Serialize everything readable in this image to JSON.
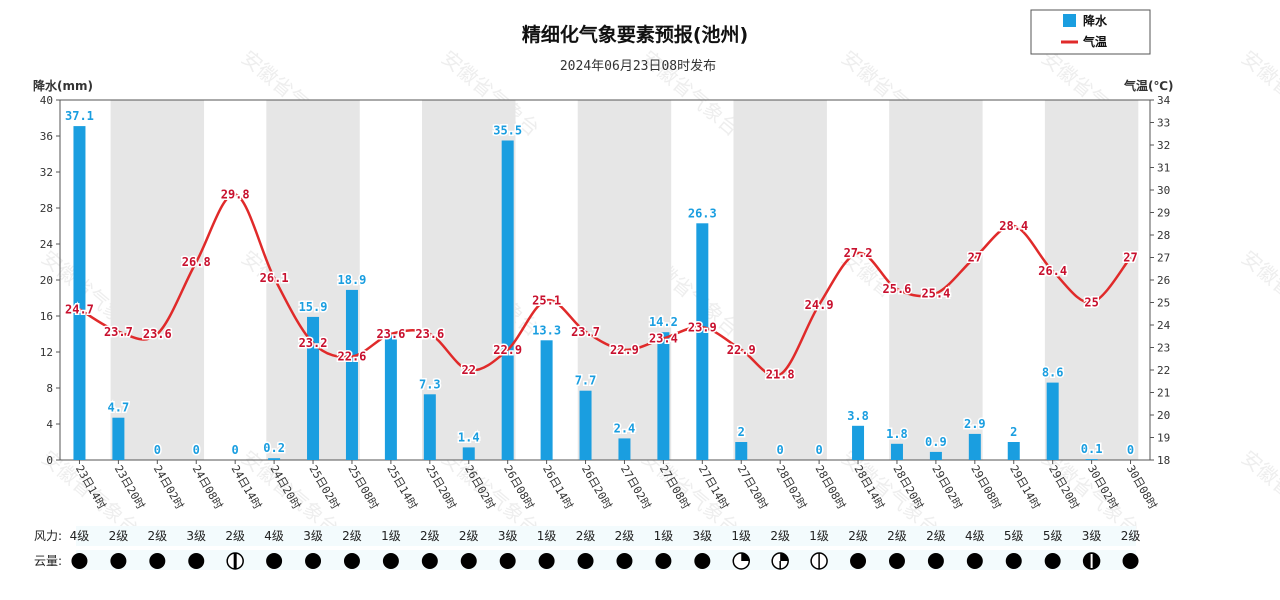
{
  "chart_data": {
    "type": "bar+line",
    "title": "精细化气象要素预报(池州)",
    "subtitle": "2024年06月23日08时发布",
    "y_left_label": "降水(mm)",
    "y_right_label": "气温(℃)",
    "y_left_range": [
      0,
      40
    ],
    "y_left_ticks": [
      0,
      4,
      8,
      12,
      16,
      20,
      24,
      28,
      32,
      36,
      40
    ],
    "y_right_range": [
      18,
      34
    ],
    "y_right_ticks": [
      18,
      19,
      20,
      21,
      22,
      23,
      24,
      25,
      26,
      27,
      28,
      29,
      30,
      31,
      32,
      33,
      34
    ],
    "categories": [
      "23日14时",
      "23日20时",
      "24日02时",
      "24日08时",
      "24日14时",
      "24日20时",
      "25日02时",
      "25日08时",
      "25日14时",
      "25日20时",
      "26日02时",
      "26日08时",
      "26日14时",
      "26日20时",
      "27日02时",
      "27日08时",
      "27日14时",
      "27日20时",
      "28日02时",
      "28日08时",
      "28日14时",
      "28日20时",
      "29日02时",
      "29日08时",
      "29日14时",
      "29日20时",
      "30日02时",
      "30日08时"
    ],
    "series": [
      {
        "name": "降水",
        "type": "bar",
        "axis": "left",
        "color": "#1a9ee0",
        "values": [
          37.1,
          4.7,
          0,
          0,
          0,
          0.2,
          15.9,
          18.9,
          14,
          7.3,
          1.4,
          35.5,
          13.3,
          7.7,
          2.4,
          14.2,
          26.3,
          2,
          0,
          0,
          3.8,
          1.8,
          0.9,
          2.9,
          2,
          8.6,
          0.1,
          0
        ],
        "labels": [
          "37.1",
          "4.7",
          "0",
          "0",
          "0",
          "0.2",
          "15.9",
          "18.9",
          "",
          "7.3",
          "1.4",
          "35.5",
          "13.3",
          "7.7",
          "2.4",
          "14.2",
          "26.3",
          "2",
          "0",
          "0",
          "3.8",
          "1.8",
          "0.9",
          "2.9",
          "2",
          "8.6",
          "0.1",
          "0"
        ]
      },
      {
        "name": "气温",
        "type": "line",
        "axis": "right",
        "color": "#e02a2a",
        "values": [
          24.7,
          23.7,
          23.6,
          26.8,
          29.8,
          26.1,
          23.2,
          22.6,
          23.6,
          23.6,
          22,
          22.9,
          25.1,
          23.7,
          22.9,
          23.4,
          23.9,
          22.9,
          21.8,
          24.9,
          27.2,
          25.6,
          25.4,
          27,
          28.4,
          26.4,
          25,
          27
        ]
      }
    ],
    "legend_position": "top-right",
    "grid": false,
    "shaded_bands": "alternating night periods (20时-08时)"
  },
  "wind": {
    "row_label": "风力:",
    "values": [
      "4级",
      "2级",
      "2级",
      "3级",
      "2级",
      "4级",
      "3级",
      "2级",
      "1级",
      "2级",
      "2级",
      "3级",
      "1级",
      "2级",
      "2级",
      "1级",
      "3级",
      "1级",
      "2级",
      "1级",
      "2级",
      "2级",
      "2级",
      "4级",
      "5级",
      "5级",
      "3级",
      "2级"
    ]
  },
  "cloud": {
    "row_label": "云量:",
    "values": [
      "full",
      "full",
      "full",
      "full",
      "half-vertical",
      "full",
      "full",
      "full",
      "full",
      "full",
      "full",
      "full",
      "full",
      "full",
      "full",
      "full",
      "full",
      "quarter-open",
      "three-quarter",
      "split-open",
      "full",
      "full",
      "full",
      "full",
      "full",
      "full",
      "mostly-full",
      "full"
    ]
  },
  "watermark": "安徽省气象台"
}
